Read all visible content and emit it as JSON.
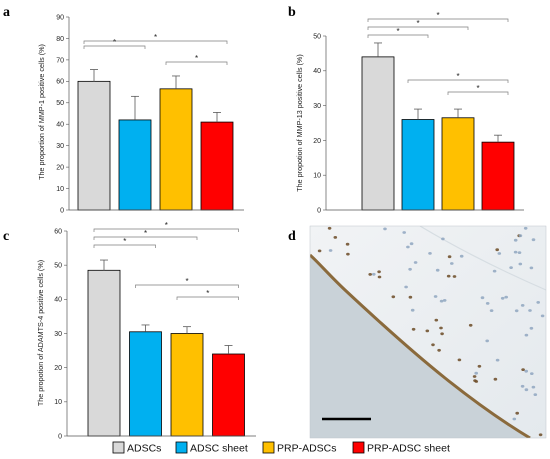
{
  "legend": {
    "items": [
      {
        "label": "ADSCs",
        "color": "#d9d9d9"
      },
      {
        "label": "ADSC sheet",
        "color": "#00b0f0"
      },
      {
        "label": "PRP-ADSCs",
        "color": "#ffc000"
      },
      {
        "label": "PRP-ADSC sheet",
        "color": "#ff0000"
      }
    ]
  },
  "colors": {
    "bar_stroke": "#000000",
    "error_bar": "#595959",
    "bracket": "#7f7f7f"
  },
  "panel_d": {
    "letter": "d",
    "image": "histology-micrograph",
    "background_color": "#c9d2d8",
    "tissue_color": "#eaeef1"
  },
  "chart_data": [
    {
      "panel": "a",
      "type": "bar",
      "categories": [
        "ADSCs",
        "ADSC sheet",
        "PRP-ADSCs",
        "PRP-ADSC sheet"
      ],
      "values": [
        60,
        42,
        56.5,
        41
      ],
      "errors": [
        5.5,
        11,
        6,
        4.5
      ],
      "ylabel": "The proportion of MMP-1 positive cells (%)",
      "ylim": [
        0,
        90
      ],
      "yticks": [
        "0",
        "10",
        "20",
        "30",
        "40",
        "50",
        "60",
        "70",
        "80",
        "90"
      ],
      "significance": [
        {
          "from": 0,
          "to": 1,
          "label": "*"
        },
        {
          "from": 0,
          "to": 3,
          "label": "*"
        },
        {
          "from": 2,
          "to": 3,
          "label": "*"
        }
      ]
    },
    {
      "panel": "b",
      "type": "bar",
      "categories": [
        "ADSCs",
        "ADSC sheet",
        "PRP-ADSCs",
        "PRP-ADSC sheet"
      ],
      "values": [
        44,
        26,
        26.5,
        19.5
      ],
      "errors": [
        4,
        3,
        2.5,
        2
      ],
      "ylabel": "The propotion of MMP-13 positive cells (%)",
      "ylim": [
        0,
        50
      ],
      "yticks": [
        "0",
        "10",
        "20",
        "30",
        "40",
        "50"
      ],
      "significance": [
        {
          "from": 0,
          "to": 1,
          "label": "*"
        },
        {
          "from": 0,
          "to": 2,
          "label": "*"
        },
        {
          "from": 0,
          "to": 3,
          "label": "*"
        },
        {
          "from": 1,
          "to": 3,
          "label": "*"
        },
        {
          "from": 2,
          "to": 3,
          "label": "*"
        }
      ]
    },
    {
      "panel": "c",
      "type": "bar",
      "categories": [
        "ADSCs",
        "ADSC sheet",
        "PRP-ADSCs",
        "PRP-ADSC sheet"
      ],
      "values": [
        48.5,
        30.5,
        30,
        24
      ],
      "errors": [
        3,
        2,
        2,
        2.5
      ],
      "ylabel": "The propotion of ADAMTS-4 positive cells (%)",
      "ylim": [
        0,
        60
      ],
      "yticks": [
        "0",
        "10",
        "20",
        "30",
        "40",
        "50",
        "60"
      ],
      "significance": [
        {
          "from": 0,
          "to": 1,
          "label": "*"
        },
        {
          "from": 0,
          "to": 2,
          "label": "*"
        },
        {
          "from": 0,
          "to": 3,
          "label": "*"
        },
        {
          "from": 1,
          "to": 3,
          "label": "*"
        },
        {
          "from": 2,
          "to": 3,
          "label": "*"
        }
      ]
    }
  ]
}
